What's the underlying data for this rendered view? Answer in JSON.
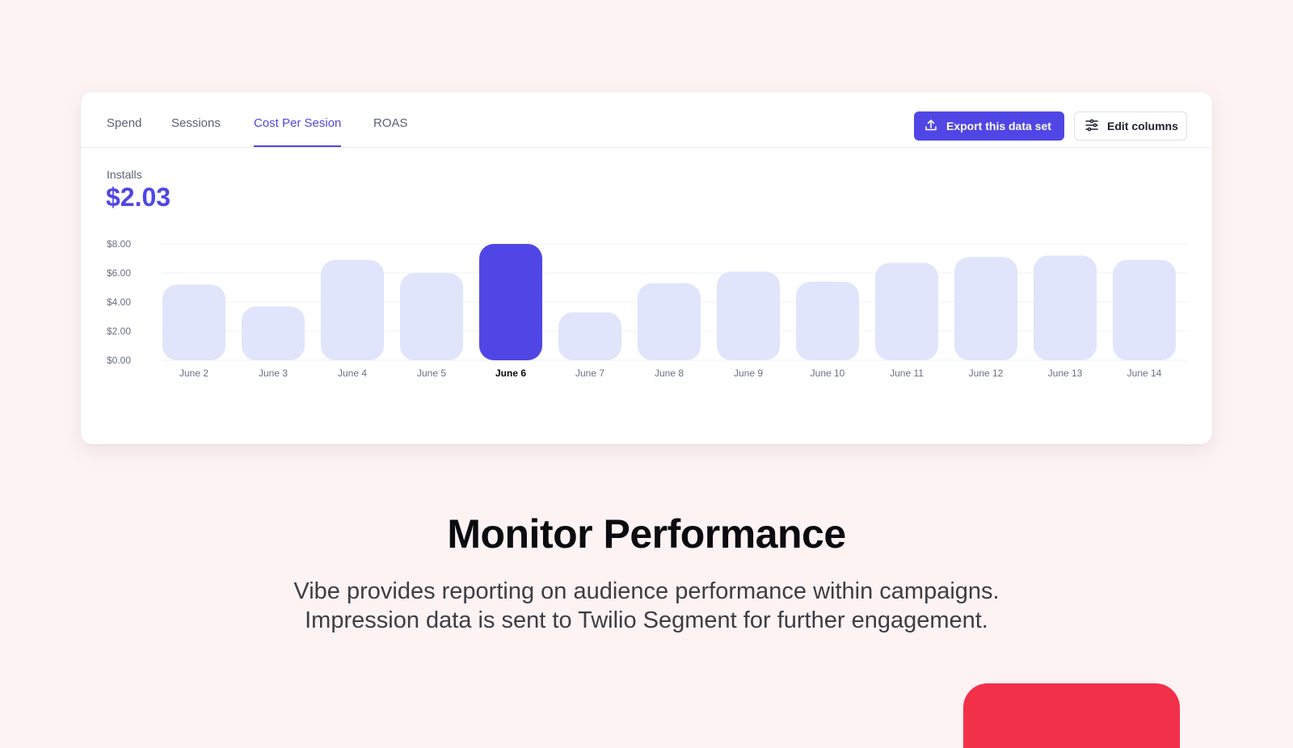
{
  "tabs": [
    {
      "label": "Spend",
      "active": false
    },
    {
      "label": "Sessions",
      "active": false
    },
    {
      "label": "Cost Per Sesion",
      "active": true
    },
    {
      "label": "ROAS",
      "active": false
    }
  ],
  "actions": {
    "export_label": "Export this data set",
    "export_icon": "upload-icon",
    "edit_label": "Edit columns",
    "edit_icon": "sliders-icon"
  },
  "metric": {
    "label": "Installs",
    "value": "$2.03"
  },
  "colors": {
    "accent": "#4f46e5",
    "bar": "#e0e5fb",
    "highlight_bar": "#5046e5",
    "background": "#fdf3f3",
    "red_block": "#f2304a"
  },
  "chart_data": {
    "type": "bar",
    "categories": [
      "June 2",
      "June 3",
      "June 4",
      "June 5",
      "June 6",
      "June 7",
      "June 8",
      "June 9",
      "June 10",
      "June 11",
      "June 12",
      "June 13",
      "June 14"
    ],
    "values": [
      5.2,
      3.7,
      6.9,
      6.0,
      8.0,
      3.3,
      5.3,
      6.1,
      5.4,
      6.7,
      7.1,
      7.2,
      6.9
    ],
    "highlight": "June 6",
    "ylim": [
      0,
      8
    ],
    "yticks": [
      "$0.00",
      "$2.00",
      "$4.00",
      "$6.00",
      "$8.00"
    ],
    "grid": true
  },
  "headline": "Monitor Performance",
  "description": [
    "Vibe provides reporting on audience performance within campaigns.",
    "Impression data is sent to Twilio Segment for further engagement."
  ]
}
